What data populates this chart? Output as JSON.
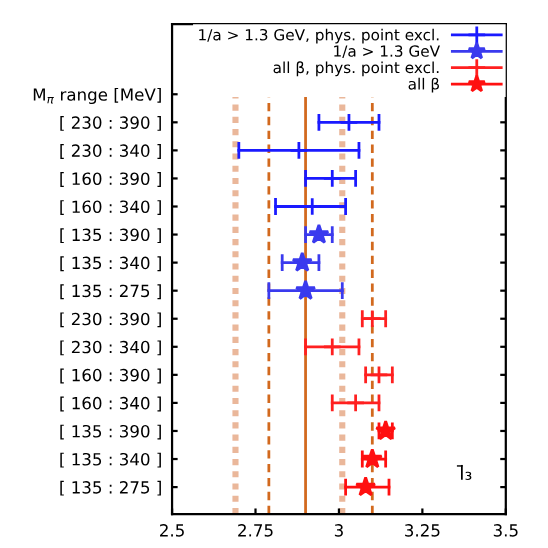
{
  "chart_data": {
    "type": "scatter",
    "orientation": "horizontal",
    "categories": [
      "M$_{π}$ range [MeV]",
      "[ 230 : 390 ]",
      "[ 230 : 340 ]",
      "[ 160 : 390 ]",
      "[ 160 : 340 ]",
      "[ 135 : 390 ]",
      "[ 135 : 340 ]",
      "[ 135 : 275 ]",
      "[ 230 : 390 ]",
      "[ 230 : 340 ]",
      "[ 160 : 390 ]",
      "[ 160 : 340 ]",
      "[ 135 : 390 ]",
      "[ 135 : 340 ]",
      "[ 135 : 275 ]"
    ],
    "series": [
      {
        "name": "1/a > 1.3 GeV, phys. point excl.",
        "color": "#1a1aff",
        "marker": "cross",
        "values": [
          null,
          3.03,
          2.88,
          2.98,
          2.92,
          null,
          null,
          null,
          null,
          null,
          null,
          null,
          null,
          null,
          null
        ],
        "errors": [
          null,
          [
            2.94,
            3.12
          ],
          [
            2.7,
            3.06
          ],
          [
            2.9,
            3.05
          ],
          [
            2.81,
            3.02
          ],
          null,
          null,
          null,
          null,
          null,
          null,
          null,
          null,
          null,
          null
        ]
      },
      {
        "name": "1/a > 1.3 GeV",
        "color": "#3a3aee",
        "marker": "star",
        "values": [
          null,
          null,
          null,
          null,
          null,
          2.94,
          2.89,
          2.9,
          null,
          null,
          null,
          null,
          null,
          null,
          null
        ],
        "errors": [
          null,
          null,
          null,
          null,
          null,
          [
            2.9,
            2.98
          ],
          [
            2.83,
            2.94
          ],
          [
            2.79,
            3.01
          ],
          null,
          null,
          null,
          null,
          null,
          null,
          null
        ]
      },
      {
        "name": "all β, phys. point excl.",
        "color": "#ff2020",
        "marker": "cross",
        "values": [
          null,
          null,
          null,
          null,
          null,
          null,
          null,
          null,
          3.1,
          2.98,
          3.12,
          3.05,
          null,
          null,
          null
        ],
        "errors": [
          null,
          null,
          null,
          null,
          null,
          null,
          null,
          null,
          [
            3.07,
            3.14
          ],
          [
            2.9,
            3.06
          ],
          [
            3.08,
            3.16
          ],
          [
            2.98,
            3.12
          ],
          null,
          null,
          null
        ]
      },
      {
        "name": "all β",
        "color": "#ff1010",
        "marker": "star",
        "values": [
          null,
          null,
          null,
          null,
          null,
          null,
          null,
          null,
          null,
          null,
          null,
          null,
          3.14,
          3.1,
          3.08
        ],
        "errors": [
          null,
          null,
          null,
          null,
          null,
          null,
          null,
          null,
          null,
          null,
          null,
          null,
          [
            3.12,
            3.16
          ],
          [
            3.07,
            3.14
          ],
          [
            3.02,
            3.15
          ]
        ]
      }
    ],
    "xlim": [
      2.5,
      3.5
    ],
    "xticks": [
      2.5,
      2.75,
      3,
      3.25,
      3.5
    ],
    "ref_lines": [
      {
        "axis": "x",
        "value": 2.69,
        "color": "#eab79a",
        "line_style": "dotted"
      },
      {
        "axis": "x",
        "value": 2.79,
        "color": "#d2691e",
        "line_style": "dashed"
      },
      {
        "axis": "x",
        "value": 2.9,
        "color": "#d2691e",
        "line_style": "solid"
      },
      {
        "axis": "x",
        "value": 3.01,
        "color": "#eab79a",
        "line_style": "dotted"
      },
      {
        "axis": "x",
        "value": 3.1,
        "color": "#d2691e",
        "line_style": "dashed"
      }
    ],
    "annotations": [
      "l̄₃"
    ],
    "legend": "top right",
    "grid": false
  }
}
